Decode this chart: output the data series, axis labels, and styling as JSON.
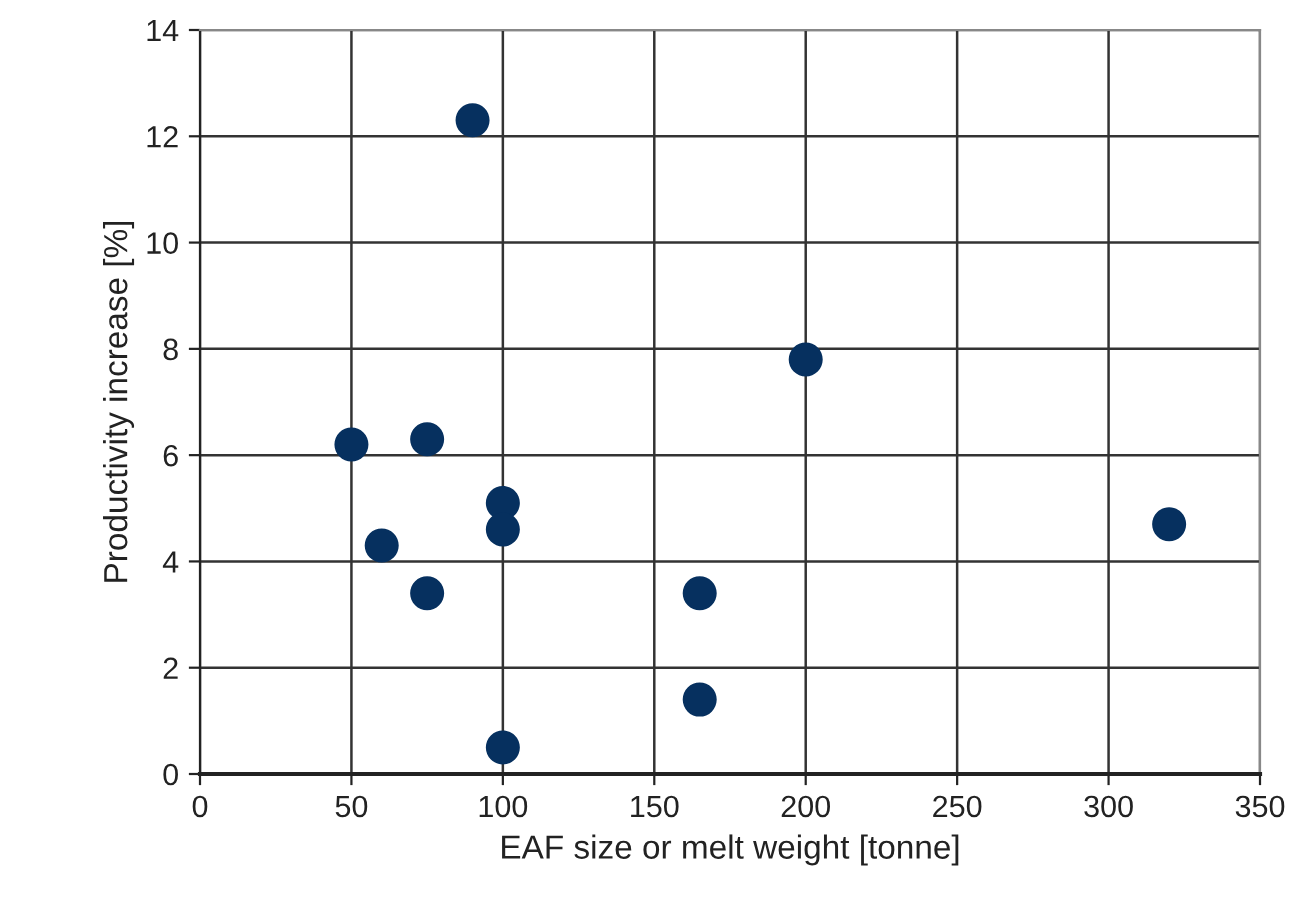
{
  "chart_data": {
    "type": "scatter",
    "xlabel": "EAF size or melt weight [tonne]",
    "ylabel": "Productivity increase [%]",
    "x": [
      90,
      50,
      75,
      60,
      75,
      100,
      100,
      100,
      165,
      165,
      200,
      320
    ],
    "series": [
      {
        "color": "#06305f",
        "values": [
          12.3,
          6.2,
          6.3,
          4.3,
          3.4,
          5.1,
          4.6,
          0.5,
          3.4,
          1.4,
          7.8,
          4.7
        ]
      }
    ],
    "xlim": [
      0,
      350
    ],
    "xticks": [
      0,
      50,
      100,
      150,
      200,
      250,
      300,
      350
    ],
    "ylim": [
      0,
      14
    ],
    "yticks": [
      0,
      2,
      4,
      6,
      8,
      10,
      12,
      14
    ],
    "grid": true,
    "marker": "circle"
  }
}
